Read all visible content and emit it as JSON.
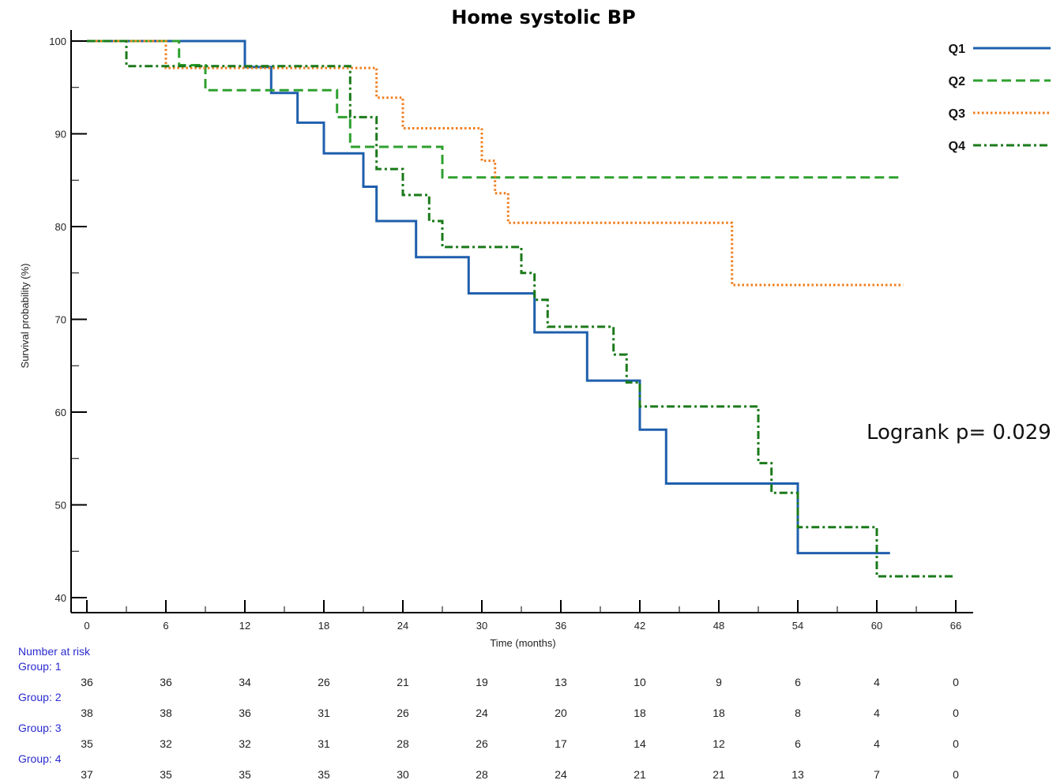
{
  "chart_data": {
    "type": "line",
    "title": "Home systolic BP",
    "xlabel": "Time (months)",
    "ylabel": "Survival probability (%)",
    "xlim": [
      0,
      66
    ],
    "ylim": [
      40,
      100
    ],
    "x_ticks": [
      0,
      6,
      12,
      18,
      24,
      30,
      36,
      42,
      48,
      54,
      60,
      66
    ],
    "y_ticks": [
      40,
      50,
      60,
      70,
      80,
      90,
      100
    ],
    "legend_position": "top-right",
    "annotation": "Logrank p= 0.029",
    "series": [
      {
        "name": "Q1",
        "color": "#1f5fad",
        "dash": "solid",
        "points": [
          [
            0,
            100
          ],
          [
            12,
            100
          ],
          [
            12,
            97.2
          ],
          [
            14,
            97.2
          ],
          [
            14,
            94.4
          ],
          [
            16,
            94.4
          ],
          [
            16,
            91.2
          ],
          [
            18,
            91.2
          ],
          [
            18,
            87.9
          ],
          [
            21,
            87.9
          ],
          [
            21,
            84.3
          ],
          [
            22,
            84.3
          ],
          [
            22,
            80.6
          ],
          [
            25,
            80.6
          ],
          [
            25,
            76.7
          ],
          [
            29,
            76.7
          ],
          [
            29,
            72.8
          ],
          [
            34,
            72.8
          ],
          [
            34,
            68.6
          ],
          [
            38,
            68.6
          ],
          [
            38,
            63.4
          ],
          [
            42,
            63.4
          ],
          [
            42,
            58.1
          ],
          [
            44,
            58.1
          ],
          [
            44,
            52.3
          ],
          [
            54,
            52.3
          ],
          [
            54,
            44.8
          ],
          [
            61,
            44.8
          ]
        ]
      },
      {
        "name": "Q2",
        "color": "#2ea02e",
        "dash": "dashed",
        "points": [
          [
            0,
            100
          ],
          [
            7,
            100
          ],
          [
            7,
            97.4
          ],
          [
            9,
            97.4
          ],
          [
            9,
            94.7
          ],
          [
            19,
            94.7
          ],
          [
            19,
            91.8
          ],
          [
            20,
            91.8
          ],
          [
            20,
            88.6
          ],
          [
            27,
            88.6
          ],
          [
            27,
            85.3
          ],
          [
            62,
            85.3
          ]
        ]
      },
      {
        "name": "Q3",
        "color": "#f07d1a",
        "dash": "dotted",
        "points": [
          [
            0,
            100
          ],
          [
            6,
            100
          ],
          [
            6,
            97.1
          ],
          [
            22,
            97.1
          ],
          [
            22,
            93.9
          ],
          [
            24,
            93.9
          ],
          [
            24,
            90.6
          ],
          [
            30,
            90.6
          ],
          [
            30,
            87.1
          ],
          [
            31,
            87.1
          ],
          [
            31,
            83.6
          ],
          [
            32,
            83.6
          ],
          [
            32,
            80.4
          ],
          [
            49,
            80.4
          ],
          [
            49,
            73.7
          ],
          [
            62,
            73.7
          ]
        ]
      },
      {
        "name": "Q4",
        "color": "#1a7a1a",
        "dash": "dashdot",
        "points": [
          [
            0,
            100
          ],
          [
            3,
            100
          ],
          [
            3,
            97.3
          ],
          [
            20,
            97.3
          ],
          [
            20,
            91.8
          ],
          [
            22,
            91.8
          ],
          [
            22,
            86.2
          ],
          [
            24,
            86.2
          ],
          [
            24,
            83.4
          ],
          [
            26,
            83.4
          ],
          [
            26,
            80.6
          ],
          [
            27,
            80.6
          ],
          [
            27,
            77.8
          ],
          [
            33,
            77.8
          ],
          [
            33,
            75.0
          ],
          [
            34,
            75.0
          ],
          [
            34,
            72.1
          ],
          [
            35,
            72.1
          ],
          [
            35,
            69.2
          ],
          [
            40,
            69.2
          ],
          [
            40,
            66.2
          ],
          [
            41,
            66.2
          ],
          [
            41,
            63.2
          ],
          [
            42,
            63.2
          ],
          [
            42,
            60.6
          ],
          [
            51,
            60.6
          ],
          [
            51,
            54.5
          ],
          [
            52,
            54.5
          ],
          [
            52,
            51.3
          ],
          [
            54,
            51.3
          ],
          [
            54,
            47.6
          ],
          [
            60,
            47.6
          ],
          [
            60,
            42.3
          ],
          [
            66,
            42.3
          ]
        ]
      }
    ]
  },
  "risk_table": {
    "header": "Number at risk",
    "times": [
      0,
      6,
      12,
      18,
      24,
      30,
      36,
      42,
      48,
      54,
      60,
      66
    ],
    "groups": [
      {
        "label": "Group: 1",
        "values": [
          "36",
          "36",
          "34",
          "26",
          "21",
          "19",
          "13",
          "10",
          "9",
          "6",
          "4",
          "0"
        ]
      },
      {
        "label": "Group: 2",
        "values": [
          "38",
          "38",
          "36",
          "31",
          "26",
          "24",
          "20",
          "18",
          "18",
          "8",
          "4",
          "0"
        ]
      },
      {
        "label": "Group: 3",
        "values": [
          "35",
          "32",
          "32",
          "31",
          "28",
          "26",
          "17",
          "14",
          "12",
          "6",
          "4",
          "0"
        ]
      },
      {
        "label": "Group: 4",
        "values": [
          "37",
          "35",
          "35",
          "35",
          "30",
          "28",
          "24",
          "21",
          "21",
          "13",
          "7",
          "0"
        ]
      }
    ]
  }
}
